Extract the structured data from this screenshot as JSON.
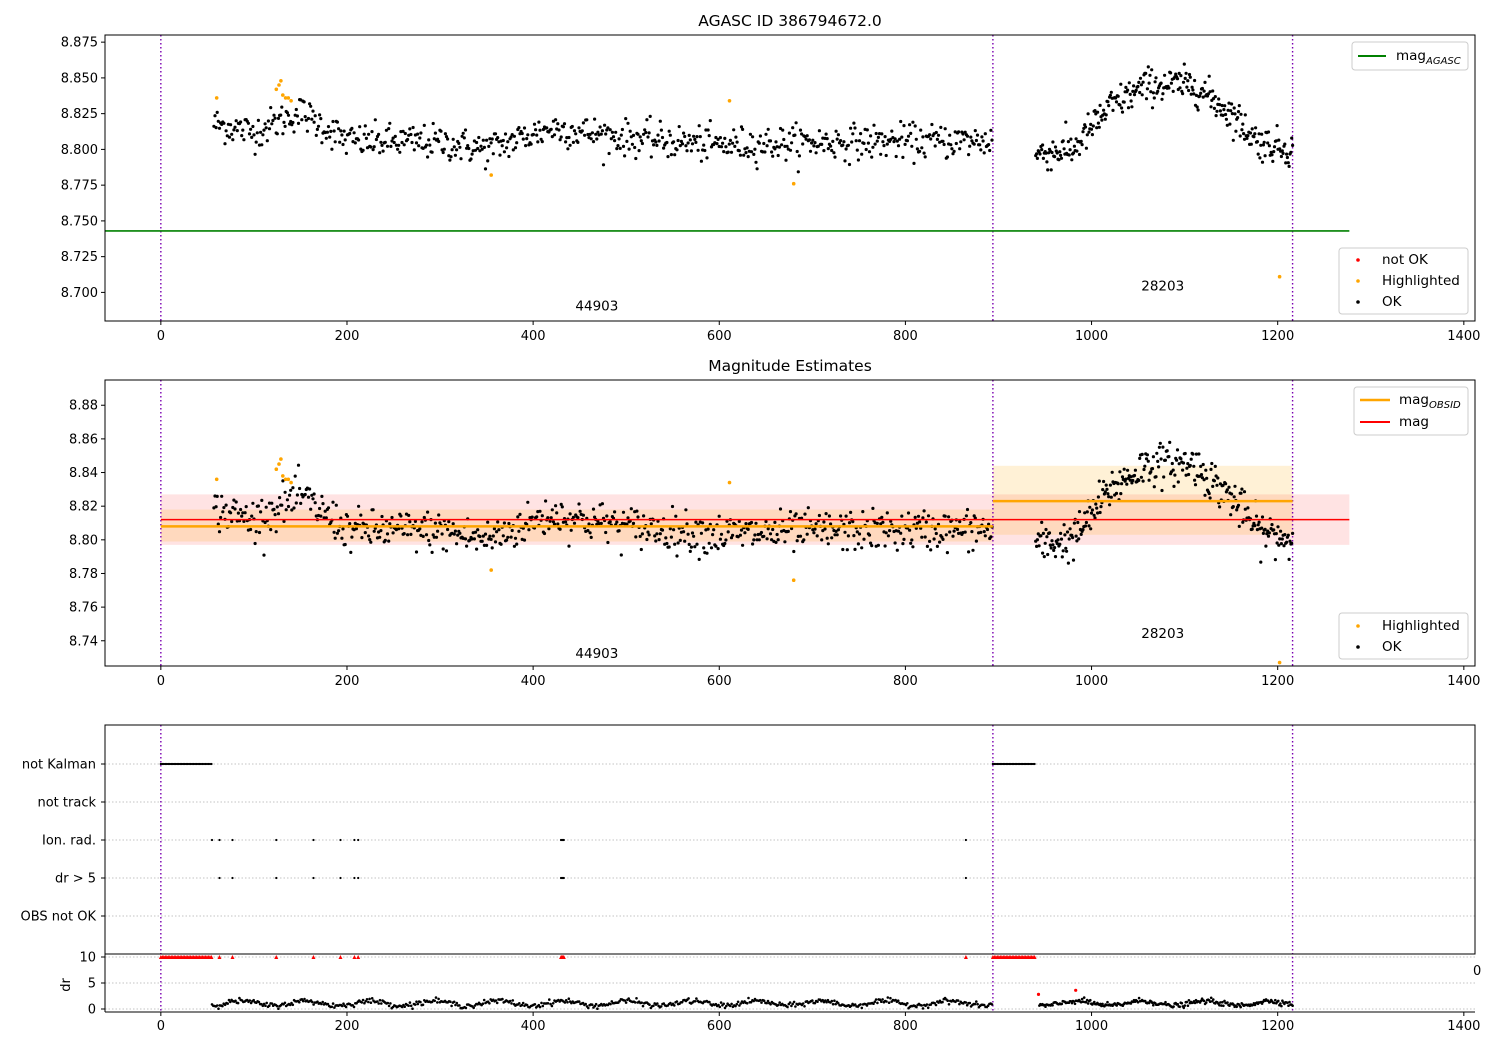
{
  "chart_data": [
    {
      "type": "scatter",
      "title": "AGASC ID 386794672.0",
      "xlim": [
        -60,
        1412
      ],
      "ylim": [
        8.68,
        8.88
      ],
      "xticks": [
        0,
        200,
        400,
        600,
        800,
        1000,
        1200,
        1400
      ],
      "yticks": [
        8.7,
        8.725,
        8.75,
        8.775,
        8.8,
        8.825,
        8.85,
        8.875
      ],
      "ytick_labels": [
        "8.700",
        "8.725",
        "8.750",
        "8.775",
        "8.800",
        "8.825",
        "8.850",
        "8.875"
      ],
      "obsid_boundaries": [
        0,
        894,
        1216
      ],
      "obsid_labels": [
        {
          "text": "44903",
          "x": 447,
          "y": 8.69
        },
        {
          "text": "28203",
          "x": 1055,
          "y": 8.704
        }
      ],
      "mag_agasc": {
        "value": 8.743,
        "xrange": [
          -60,
          1277
        ]
      },
      "legend_top": {
        "entries": [
          {
            "label": "mag",
            "sub": "AGASC",
            "color": "#008000"
          }
        ],
        "placement": "top-right"
      },
      "legend_bottom": {
        "entries": [
          {
            "label": "not OK",
            "color": "#ff0000"
          },
          {
            "label": "Highlighted",
            "color": "#ffa500"
          },
          {
            "label": "OK",
            "color": "#000000"
          }
        ],
        "placement": "lower-right"
      },
      "highlighted_points": [
        [
          60,
          8.836
        ],
        [
          124,
          8.842
        ],
        [
          127,
          8.845
        ],
        [
          129,
          8.848
        ],
        [
          131,
          8.838
        ],
        [
          134,
          8.836
        ],
        [
          137,
          8.836
        ],
        [
          140,
          8.834
        ],
        [
          355,
          8.782
        ],
        [
          611,
          8.834
        ],
        [
          680,
          8.776
        ],
        [
          1202,
          8.711
        ]
      ],
      "segments": [
        {
          "x": [
            57,
            893
          ],
          "n": 700,
          "profile": [
            [
              57,
              8.818
            ],
            [
              100,
              8.812
            ],
            [
              150,
              8.826
            ],
            [
              200,
              8.806
            ],
            [
              300,
              8.805
            ],
            [
              350,
              8.8
            ],
            [
              420,
              8.815
            ],
            [
              500,
              8.808
            ],
            [
              600,
              8.803
            ],
            [
              700,
              8.805
            ],
            [
              893,
              8.806
            ]
          ],
          "spread": 0.006
        },
        {
          "x": [
            940,
            1216
          ],
          "n": 300,
          "profile": [
            [
              940,
              8.797
            ],
            [
              980,
              8.8
            ],
            [
              1020,
              8.83
            ],
            [
              1060,
              8.845
            ],
            [
              1110,
              8.845
            ],
            [
              1150,
              8.825
            ],
            [
              1180,
              8.805
            ],
            [
              1216,
              8.8
            ]
          ],
          "spread": 0.006
        }
      ]
    },
    {
      "type": "scatter",
      "title": "Magnitude Estimates",
      "xlim": [
        -60,
        1412
      ],
      "ylim": [
        8.725,
        8.895
      ],
      "xticks": [
        0,
        200,
        400,
        600,
        800,
        1000,
        1200,
        1400
      ],
      "yticks": [
        8.74,
        8.76,
        8.78,
        8.8,
        8.82,
        8.84,
        8.86,
        8.88
      ],
      "ytick_labels": [
        "8.74",
        "8.76",
        "8.78",
        "8.80",
        "8.82",
        "8.84",
        "8.86",
        "8.88"
      ],
      "obsid_boundaries": [
        0,
        894,
        1216
      ],
      "obsid_labels": [
        {
          "text": "44903",
          "x": 447,
          "y": 8.732
        },
        {
          "text": "28203",
          "x": 1055,
          "y": 8.744
        }
      ],
      "mag": {
        "value": 8.812,
        "band": [
          8.797,
          8.827
        ],
        "xrange": [
          0,
          1277
        ]
      },
      "mag_obsid": [
        {
          "x": [
            0,
            894
          ],
          "value": 8.808,
          "band": [
            8.799,
            8.818
          ]
        },
        {
          "x": [
            894,
            1216
          ],
          "value": 8.823,
          "band": [
            8.803,
            8.844
          ]
        }
      ],
      "legend_top": {
        "entries": [
          {
            "label": "mag",
            "sub": "OBSID",
            "color": "#ffa500"
          },
          {
            "label": "mag",
            "color": "#ff0000"
          }
        ],
        "placement": "top-right"
      },
      "legend_bottom": {
        "entries": [
          {
            "label": "Highlighted",
            "color": "#ffa500"
          },
          {
            "label": "OK",
            "color": "#000000"
          }
        ],
        "placement": "lower-right"
      },
      "highlighted_points": [
        [
          60,
          8.836
        ],
        [
          124,
          8.842
        ],
        [
          127,
          8.845
        ],
        [
          129,
          8.848
        ],
        [
          131,
          8.838
        ],
        [
          134,
          8.836
        ],
        [
          137,
          8.836
        ],
        [
          140,
          8.834
        ],
        [
          355,
          8.782
        ],
        [
          611,
          8.834
        ],
        [
          680,
          8.776
        ],
        [
          1202,
          8.727
        ]
      ],
      "segments": [
        {
          "x": [
            57,
            893
          ],
          "n": 700,
          "profile": [
            [
              57,
              8.818
            ],
            [
              100,
              8.812
            ],
            [
              150,
              8.826
            ],
            [
              200,
              8.806
            ],
            [
              300,
              8.805
            ],
            [
              350,
              8.8
            ],
            [
              420,
              8.815
            ],
            [
              500,
              8.808
            ],
            [
              600,
              8.803
            ],
            [
              700,
              8.805
            ],
            [
              893,
              8.806
            ]
          ],
          "spread": 0.006
        },
        {
          "x": [
            940,
            1216
          ],
          "n": 300,
          "profile": [
            [
              940,
              8.797
            ],
            [
              980,
              8.8
            ],
            [
              1020,
              8.83
            ],
            [
              1060,
              8.845
            ],
            [
              1110,
              8.845
            ],
            [
              1150,
              8.825
            ],
            [
              1180,
              8.805
            ],
            [
              1216,
              8.8
            ]
          ],
          "spread": 0.006
        }
      ]
    },
    {
      "type": "scatter",
      "title": "",
      "xlim": [
        -60,
        1412
      ],
      "flag_rows": [
        "not Kalman",
        "not track",
        "Ion. rad.",
        "dr > 5",
        "OBS not OK"
      ],
      "flag_points": {
        "not Kalman": {
          "ranges": [
            [
              0,
              55
            ],
            [
              894,
              940
            ]
          ]
        },
        "not track": {
          "ranges": []
        },
        "Ion. rad.": {
          "x": [
            55,
            63,
            77,
            124,
            164,
            193,
            208,
            212,
            430,
            431,
            432,
            433,
            865
          ]
        },
        "dr > 5": {
          "x": [
            63,
            77,
            124,
            164,
            193,
            208,
            212,
            430,
            431,
            432,
            433,
            865
          ]
        },
        "OBS not OK": {
          "x": []
        }
      },
      "dr": {
        "ylabel": "dr",
        "ylim": [
          0,
          10
        ],
        "yticks": [
          0,
          5,
          10
        ],
        "ytick_labels": [
          "0",
          "5",
          "10"
        ],
        "xticks": [
          0,
          200,
          400,
          600,
          800,
          1000,
          1200,
          1400
        ],
        "clipped_points": {
          "ranges": [
            [
              0,
              55
            ],
            [
              894,
              940
            ]
          ],
          "x": [
            63,
            77,
            124,
            164,
            193,
            208,
            212,
            430,
            431,
            432,
            433,
            865
          ]
        },
        "red_points": [
          [
            943,
            2.8
          ],
          [
            983,
            3.6
          ]
        ],
        "segments": [
          {
            "x": [
              55,
              893
            ],
            "n": 600,
            "mean": 1.1
          },
          {
            "x": [
              944,
              1216
            ],
            "n": 250,
            "mean": 1.1
          }
        ]
      },
      "stray_tick_label": "0"
    }
  ]
}
